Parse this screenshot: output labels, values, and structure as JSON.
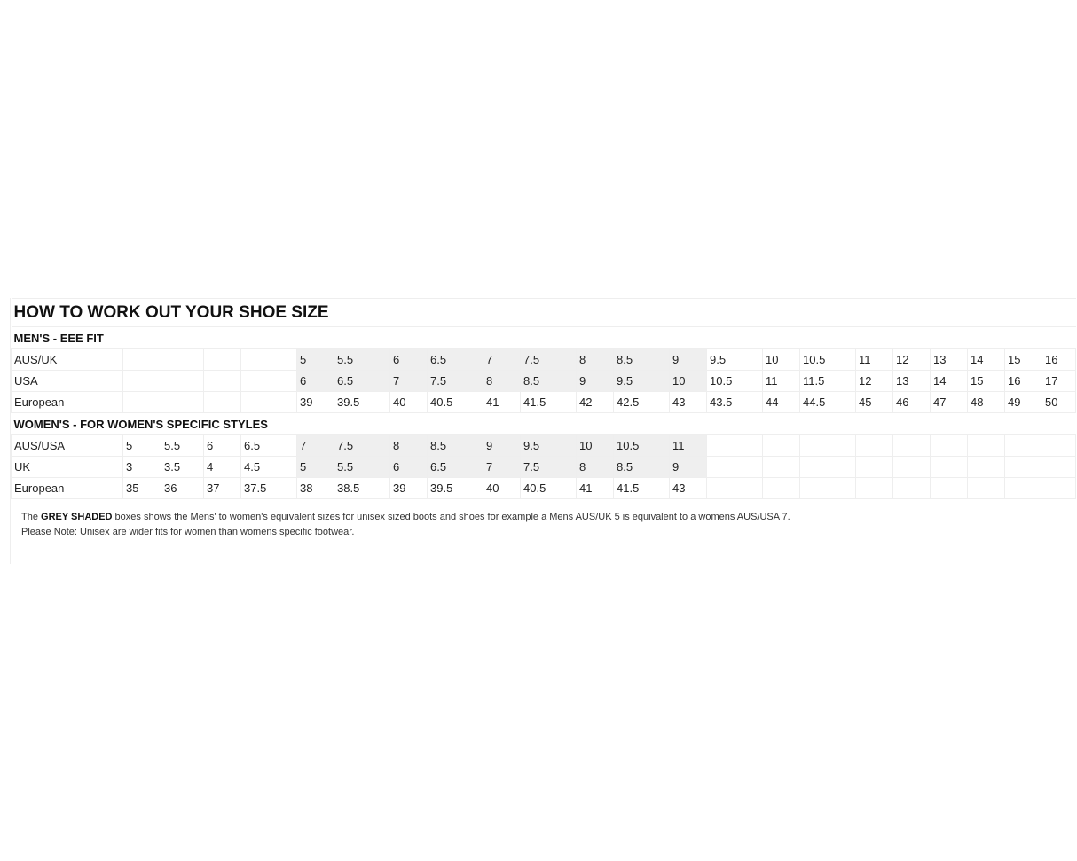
{
  "title": "HOW TO WORK OUT YOUR SHOE SIZE",
  "shade_color": "#efefef",
  "shaded_columns": [
    5,
    6,
    7,
    8,
    9,
    10,
    11,
    12,
    13
  ],
  "sections": [
    {
      "heading": "MEN'S - EEE FIT",
      "rows": [
        {
          "label": "AUS/UK",
          "shaded": true,
          "values": [
            "",
            "",
            "",
            "",
            "5",
            "5.5",
            "6",
            "6.5",
            "7",
            "7.5",
            "8",
            "8.5",
            "9",
            "9.5",
            "10",
            "10.5",
            "11",
            "12",
            "13",
            "14",
            "15",
            "16"
          ]
        },
        {
          "label": "USA",
          "shaded": true,
          "values": [
            "",
            "",
            "",
            "",
            "6",
            "6.5",
            "7",
            "7.5",
            "8",
            "8.5",
            "9",
            "9.5",
            "10",
            "10.5",
            "11",
            "11.5",
            "12",
            "13",
            "14",
            "15",
            "16",
            "17"
          ]
        },
        {
          "label": "European",
          "shaded": false,
          "values": [
            "",
            "",
            "",
            "",
            "39",
            "39.5",
            "40",
            "40.5",
            "41",
            "41.5",
            "42",
            "42.5",
            "43",
            "43.5",
            "44",
            "44.5",
            "45",
            "46",
            "47",
            "48",
            "49",
            "50"
          ]
        }
      ]
    },
    {
      "heading": "WOMEN'S - FOR WOMEN'S SPECIFIC STYLES",
      "rows": [
        {
          "label": "AUS/USA",
          "shaded": true,
          "values": [
            "5",
            "5.5",
            "6",
            "6.5",
            "7",
            "7.5",
            "8",
            "8.5",
            "9",
            "9.5",
            "10",
            "10.5",
            "11",
            "",
            "",
            "",
            "",
            "",
            "",
            "",
            "",
            ""
          ]
        },
        {
          "label": "UK",
          "shaded": true,
          "values": [
            "3",
            "3.5",
            "4",
            "4.5",
            "5",
            "5.5",
            "6",
            "6.5",
            "7",
            "7.5",
            "8",
            "8.5",
            "9",
            "",
            "",
            "",
            "",
            "",
            "",
            "",
            "",
            ""
          ]
        },
        {
          "label": "European",
          "shaded": false,
          "values": [
            "35",
            "36",
            "37",
            "37.5",
            "38",
            "38.5",
            "39",
            "39.5",
            "40",
            "40.5",
            "41",
            "41.5",
            "43",
            "",
            "",
            "",
            "",
            "",
            "",
            "",
            "",
            ""
          ]
        }
      ]
    }
  ],
  "notes": {
    "line1_prefix": "The ",
    "line1_bold": "GREY SHADED",
    "line1_rest": " boxes shows the Mens' to women's equivalent sizes for unisex sized boots and shoes for example a Mens AUS/UK 5 is equivalent to a womens AUS/USA 7.",
    "line2": "Please Note: Unisex are wider fits for women than womens specific footwear."
  }
}
